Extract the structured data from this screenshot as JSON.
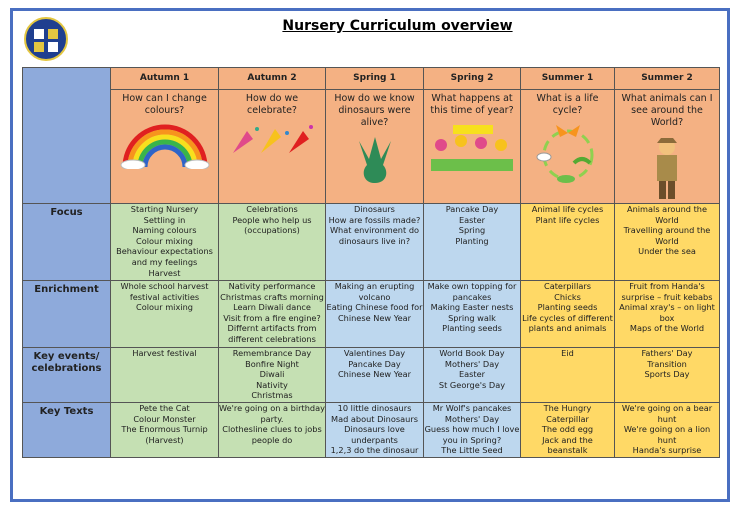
{
  "header": {
    "title": "Nursery Curriculum overview"
  },
  "table": {
    "columns": [
      "Autumn 1",
      "Autumn 2",
      "Spring 1",
      "Spring 2",
      "Summer 1",
      "Summer 2"
    ],
    "questions": [
      "How can I change colours?",
      "How do we celebrate?",
      "How do we know dinosaurs were alive?",
      "What happens at this time of year?",
      "What is a life cycle?",
      "What animals can I see around the World?"
    ],
    "rows": [
      {
        "label": "Focus",
        "cells": [
          [
            "Starting Nursery",
            "Settling in",
            "Naming colours",
            "Colour mixing",
            "Behaviour expectations",
            "and my feelings",
            "Harvest"
          ],
          [
            "Celebrations",
            "People who help us",
            "(occupations)"
          ],
          [
            "Dinosaurs",
            "How are fossils made?",
            "What environment do",
            "dinosaurs live in?"
          ],
          [
            "Pancake Day",
            "Easter",
            "Spring",
            "Planting"
          ],
          [
            "Animal life cycles",
            "Plant life cycles"
          ],
          [
            "Animals around the",
            "World",
            "Travelling around the",
            "World",
            "Under the sea"
          ]
        ]
      },
      {
        "label": "Enrichment",
        "cells": [
          [
            "Whole school harvest",
            "festival activities",
            "Colour mixing"
          ],
          [
            "Nativity performance",
            "Christmas crafts morning",
            "Learn Diwali dance",
            "Visit from a fire engine?",
            "Differnt artifacts from",
            "different celebrations"
          ],
          [
            "Making an erupting",
            "volcano",
            "Eating Chinese food for",
            "Chinese New Year"
          ],
          [
            "Make own topping for",
            "pancakes",
            "Making Easter nests",
            "Spring walk",
            "Planting seeds"
          ],
          [
            "Caterpillars",
            "Chicks",
            "Planting seeds",
            "Life cycles of different",
            "plants and animals"
          ],
          [
            "Fruit from Handa's",
            "surprise – fruit kebabs",
            "Animal xray's – on light",
            "box",
            "Maps of the World"
          ]
        ]
      },
      {
        "label": "Key events/ celebrations",
        "cells": [
          [
            "Harvest festival"
          ],
          [
            "Remembrance Day",
            "Bonfire Night",
            "Diwali",
            "Nativity",
            "Christmas"
          ],
          [
            "Valentines Day",
            "Pancake Day",
            "Chinese New Year"
          ],
          [
            "World Book Day",
            "Mothers' Day",
            "Easter",
            "St George's Day"
          ],
          [
            "Eid"
          ],
          [
            "Fathers' Day",
            "Transition",
            "Sports Day"
          ]
        ]
      },
      {
        "label": "Key Texts",
        "cells": [
          [
            "Pete the Cat",
            "Colour Monster",
            "The Enormous Turnip",
            "(Harvest)"
          ],
          [
            "We're going on a birthday",
            "party.",
            "Clothesline clues to jobs",
            "people do"
          ],
          [
            "10 little dinosaurs",
            "Mad about Dinosaurs",
            "Dinosaurs love",
            "underpants",
            "1,2,3 do the dinosaur"
          ],
          [
            "Mr Wolf's pancakes",
            "Mothers' Day",
            "Guess how much I love",
            "you in Spring?",
            "The Little Seed"
          ],
          [
            "The Hungry Caterpillar",
            "The odd egg",
            "Jack and the",
            "beanstalk"
          ],
          [
            "We're going on a bear",
            "hunt",
            "We're going on a lion",
            "hunt",
            "Handa's surprise"
          ]
        ]
      }
    ]
  }
}
